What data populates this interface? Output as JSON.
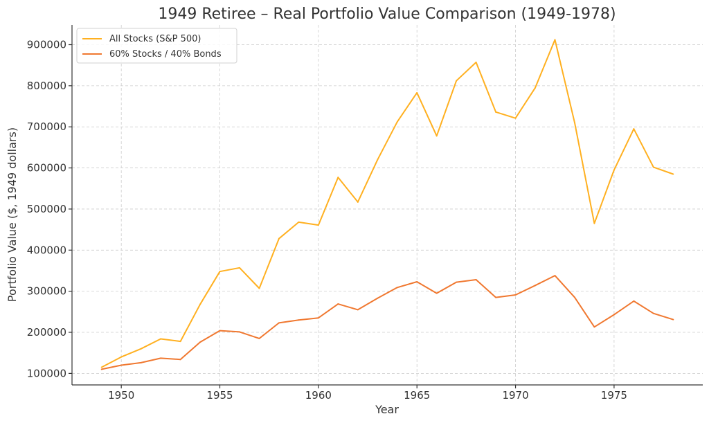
{
  "chart_data": {
    "type": "line",
    "title": "1949 Retiree – Real Portfolio Value Comparison (1949-1978)",
    "xlabel": "Year",
    "ylabel": "Portfolio Value ($, 1949 dollars)",
    "xlim": [
      1947.5,
      1979.5
    ],
    "ylim": [
      72000,
      948000
    ],
    "xticks": [
      1950,
      1955,
      1960,
      1965,
      1970,
      1975
    ],
    "yticks": [
      100000,
      200000,
      300000,
      400000,
      500000,
      600000,
      700000,
      800000,
      900000
    ],
    "grid": true,
    "legend_position": "top-left",
    "x": [
      1949,
      1950,
      1951,
      1952,
      1953,
      1954,
      1955,
      1956,
      1957,
      1958,
      1959,
      1960,
      1961,
      1962,
      1963,
      1964,
      1965,
      1966,
      1967,
      1968,
      1969,
      1970,
      1971,
      1972,
      1973,
      1974,
      1975,
      1976,
      1977,
      1978
    ],
    "series": [
      {
        "name": "All Stocks (S&P 500)",
        "color": "#FFB020",
        "values": [
          115000,
          140000,
          160000,
          184000,
          178000,
          268000,
          348000,
          357000,
          307000,
          428000,
          468000,
          461000,
          577000,
          517000,
          620000,
          712000,
          783000,
          678000,
          812000,
          857000,
          736000,
          721000,
          795000,
          912000,
          710000,
          465000,
          595000,
          695000,
          602000,
          585000
        ]
      },
      {
        "name": "60% Stocks / 40% Bonds",
        "color": "#F07830",
        "values": [
          110000,
          120000,
          126000,
          137000,
          134000,
          176000,
          204000,
          201000,
          185000,
          223000,
          230000,
          235000,
          269000,
          255000,
          283000,
          309000,
          323000,
          295000,
          322000,
          328000,
          285000,
          291000,
          314000,
          338000,
          285000,
          213000,
          243000,
          276000,
          246000,
          231000
        ]
      }
    ]
  }
}
